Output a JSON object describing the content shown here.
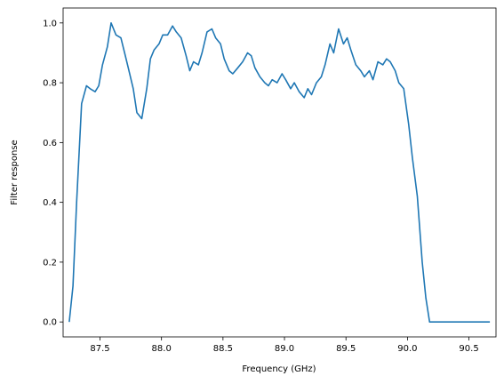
{
  "chart_data": {
    "type": "line",
    "title": "",
    "xlabel": "Frequency (GHz)",
    "ylabel": "Filter response",
    "xlim": [
      87.2,
      90.72
    ],
    "ylim": [
      -0.05,
      1.05
    ],
    "xticks": [
      87.5,
      88.0,
      88.5,
      89.0,
      89.5,
      90.0,
      90.5
    ],
    "xtick_labels": [
      "87.5",
      "88.0",
      "88.5",
      "89.0",
      "89.5",
      "90.0",
      "90.5"
    ],
    "yticks": [
      0.0,
      0.2,
      0.4,
      0.6,
      0.8,
      1.0
    ],
    "ytick_labels": [
      "0.0",
      "0.2",
      "0.4",
      "0.6",
      "0.8",
      "1.0"
    ],
    "grid": false,
    "series": [
      {
        "color": "#1f77b4",
        "x": [
          87.25,
          87.28,
          87.31,
          87.35,
          87.39,
          87.42,
          87.46,
          87.49,
          87.52,
          87.56,
          87.59,
          87.63,
          87.67,
          87.7,
          87.73,
          87.77,
          87.8,
          87.84,
          87.88,
          87.91,
          87.94,
          87.98,
          88.01,
          88.05,
          88.09,
          88.12,
          88.16,
          88.2,
          88.23,
          88.26,
          88.3,
          88.33,
          88.37,
          88.41,
          88.44,
          88.48,
          88.51,
          88.55,
          88.58,
          88.62,
          88.66,
          88.7,
          88.73,
          88.76,
          88.8,
          88.84,
          88.87,
          88.9,
          88.94,
          88.98,
          89.01,
          89.05,
          89.08,
          89.12,
          89.16,
          89.19,
          89.22,
          89.26,
          89.3,
          89.33,
          89.37,
          89.4,
          89.44,
          89.48,
          89.51,
          89.54,
          89.58,
          89.62,
          89.65,
          89.69,
          89.72,
          89.76,
          89.8,
          89.83,
          89.86,
          89.9,
          89.93,
          89.97,
          90.01,
          90.04,
          90.08,
          90.12,
          90.15,
          90.18,
          90.22,
          90.26,
          90.29,
          90.33,
          90.37,
          90.4,
          90.44,
          90.47,
          90.51,
          90.54,
          90.58,
          90.61,
          90.64,
          90.67
        ],
        "y": [
          0.0,
          0.12,
          0.4,
          0.73,
          0.79,
          0.78,
          0.77,
          0.79,
          0.86,
          0.92,
          1.0,
          0.96,
          0.95,
          0.9,
          0.85,
          0.78,
          0.7,
          0.68,
          0.78,
          0.88,
          0.91,
          0.93,
          0.96,
          0.96,
          0.99,
          0.97,
          0.95,
          0.89,
          0.84,
          0.87,
          0.86,
          0.9,
          0.97,
          0.98,
          0.95,
          0.93,
          0.88,
          0.84,
          0.83,
          0.85,
          0.87,
          0.9,
          0.89,
          0.85,
          0.82,
          0.8,
          0.79,
          0.81,
          0.8,
          0.83,
          0.81,
          0.78,
          0.8,
          0.77,
          0.75,
          0.78,
          0.76,
          0.8,
          0.82,
          0.86,
          0.93,
          0.9,
          0.98,
          0.93,
          0.95,
          0.91,
          0.86,
          0.84,
          0.82,
          0.84,
          0.81,
          0.87,
          0.86,
          0.88,
          0.87,
          0.84,
          0.8,
          0.78,
          0.66,
          0.55,
          0.42,
          0.2,
          0.08,
          0.0,
          0.0,
          0.0,
          0.0,
          0.0,
          0.0,
          0.0,
          0.0,
          0.0,
          0.0,
          0.0,
          0.0,
          0.0,
          0.0,
          0.0
        ]
      }
    ]
  }
}
